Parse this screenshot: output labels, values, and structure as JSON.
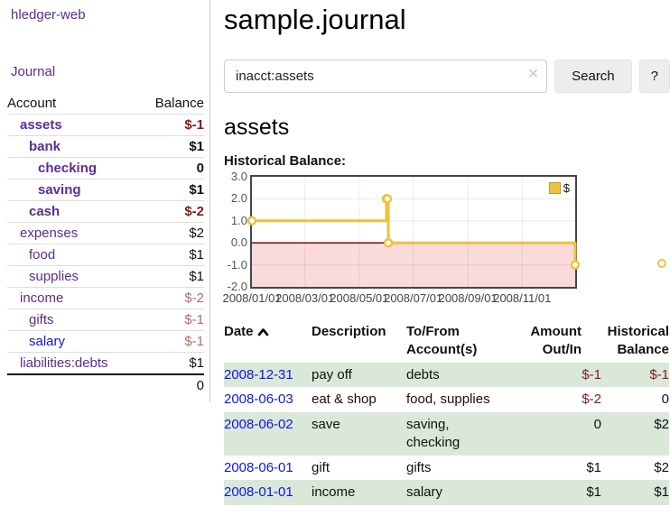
{
  "sidebar": {
    "app_title": "hledger-web",
    "journal_link": "Journal",
    "accounts_header": {
      "account": "Account",
      "balance": "Balance"
    },
    "accounts": [
      {
        "name": "assets",
        "indent": 1,
        "balance": "$-1",
        "bold": true,
        "balance_tone": "neg-strong"
      },
      {
        "name": "bank",
        "indent": 2,
        "balance": "$1",
        "bold": true,
        "balance_tone": "normal"
      },
      {
        "name": "checking",
        "indent": 3,
        "balance": "0",
        "bold": true,
        "balance_tone": "normal"
      },
      {
        "name": "saving",
        "indent": 3,
        "balance": "$1",
        "bold": true,
        "balance_tone": "normal"
      },
      {
        "name": "cash",
        "indent": 2,
        "balance": "$-2",
        "bold": true,
        "balance_tone": "neg-strong"
      },
      {
        "name": "expenses",
        "indent": 1,
        "balance": "$2",
        "bold": false,
        "balance_tone": "normal"
      },
      {
        "name": "food",
        "indent": 2,
        "balance": "$1",
        "bold": false,
        "balance_tone": "normal"
      },
      {
        "name": "supplies",
        "indent": 2,
        "balance": "$1",
        "bold": false,
        "balance_tone": "normal"
      },
      {
        "name": "income",
        "indent": 1,
        "balance": "$-2",
        "bold": false,
        "balance_tone": "neg-dim"
      },
      {
        "name": "gifts",
        "indent": 2,
        "balance": "$-1",
        "bold": false,
        "balance_tone": "neg-dim"
      },
      {
        "name": "salary",
        "indent": 2,
        "balance": "$-1",
        "bold": false,
        "balance_tone": "neg-dim",
        "link_color": "blue"
      },
      {
        "name": "liabilities:debts",
        "indent": 1,
        "balance": "$1",
        "bold": false,
        "balance_tone": "normal"
      }
    ],
    "total": "0"
  },
  "main": {
    "title": "sample.journal",
    "search": {
      "value": "inacct:assets",
      "clear_icon": "✕",
      "button_label": "Search",
      "help_label": "?"
    },
    "account_heading": "assets",
    "chart_label": "Historical Balance:"
  },
  "chart_data": {
    "type": "line",
    "title": "Historical Balance",
    "step": true,
    "legend": [
      {
        "label": "$",
        "color": "#EDC240"
      }
    ],
    "legend_position": "top-right",
    "grid": true,
    "ylim": [
      -2,
      3
    ],
    "yticks": [
      {
        "label": "3.0",
        "value": 3
      },
      {
        "label": "2.0",
        "value": 2
      },
      {
        "label": "1.0",
        "value": 1
      },
      {
        "label": "0.0",
        "value": 0
      },
      {
        "label": "-1.0",
        "value": -1
      },
      {
        "label": "-2.0",
        "value": -2
      }
    ],
    "xticks": [
      {
        "label": "2008/01/01",
        "f": 0.0
      },
      {
        "label": "2008/03/01",
        "f": 0.164
      },
      {
        "label": "2008/05/01",
        "f": 0.332
      },
      {
        "label": "2008/07/01",
        "f": 0.499
      },
      {
        "label": "2008/09/01",
        "f": 0.668
      },
      {
        "label": "2008/11/01",
        "f": 0.836
      }
    ],
    "series_name": "$",
    "points": [
      {
        "date": "2008-01-01",
        "value": 1,
        "f": 0.0
      },
      {
        "date": "2008-06-01",
        "value": 2,
        "f": 0.416
      },
      {
        "date": "2008-06-02",
        "value": 2,
        "f": 0.419
      },
      {
        "date": "2008-06-03",
        "value": 0,
        "f": 0.422
      },
      {
        "date": "2008-12-31",
        "value": -1,
        "f": 1.0
      }
    ],
    "stray_marker_value": -1,
    "line_color": "#EDC240",
    "negative_region_color": "#fbdada",
    "zero_line_color": "#8b0000"
  },
  "register": {
    "headers": {
      "date": "Date",
      "sort_icon": "chevron-up",
      "description": "Description",
      "accounts": "To/From Account(s)",
      "amount": "Amount Out/In",
      "balance": "Historical Balance"
    },
    "rows": [
      {
        "date": "2008-12-31",
        "description": "pay off",
        "accounts": "debts",
        "amount": "$-1",
        "amount_negative": true,
        "balance": "$-1",
        "balance_negative": true,
        "green": true
      },
      {
        "date": "2008-06-03",
        "description": "eat & shop",
        "accounts": "food, supplies",
        "amount": "$-2",
        "amount_negative": true,
        "balance": "0",
        "balance_negative": false,
        "green": false
      },
      {
        "date": "2008-06-02",
        "description": "save",
        "accounts": "saving, checking",
        "amount": "0",
        "amount_negative": false,
        "balance": "$2",
        "balance_negative": false,
        "green": true
      },
      {
        "date": "2008-06-01",
        "description": "gift",
        "accounts": "gifts",
        "amount": "$1",
        "amount_negative": false,
        "balance": "$2",
        "balance_negative": false,
        "green": false
      },
      {
        "date": "2008-01-01",
        "description": "income",
        "accounts": "salary",
        "amount": "$1",
        "amount_negative": false,
        "balance": "$1",
        "balance_negative": false,
        "green": true
      }
    ]
  },
  "colors": {
    "link_purple": "#5b2d90",
    "link_blue": "#1414e0",
    "negative_strong": "#7f1c1c",
    "negative_dim": "#b36b6b",
    "row_green": "#d9e8d9",
    "chart_line": "#EDC240",
    "chart_negative_bg": "#fbdada",
    "chart_zero_line": "#8b0000"
  }
}
